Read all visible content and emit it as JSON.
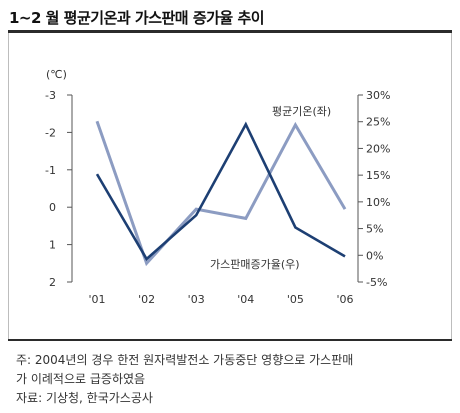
{
  "title": "1~2 월 평균기온과 가스판매 증가율 추이",
  "chart_data": {
    "type": "line",
    "x": [
      "'01",
      "'02",
      "'03",
      "'04",
      "'05",
      "'06"
    ],
    "left_axis": {
      "unit": "(℃)",
      "range": [
        -3,
        2
      ],
      "inverted": true,
      "ticks": [
        "-3",
        "-2",
        "-1",
        "0",
        "1",
        "2"
      ]
    },
    "right_axis": {
      "range": [
        -5,
        30
      ],
      "ticks": [
        "30%",
        "25%",
        "20%",
        "15%",
        "10%",
        "5%",
        "0%",
        "-5%"
      ]
    },
    "series": [
      {
        "name": "평균기온(좌)",
        "axis": "left",
        "color": "#8c9cc2",
        "values": [
          -2.3,
          1.5,
          0.05,
          0.3,
          -2.2,
          0.05
        ]
      },
      {
        "name": "가스판매증가율(우)",
        "axis": "right",
        "color": "#1d3f73",
        "values": [
          15.2,
          -0.7,
          7.5,
          24.5,
          5.2,
          -0.2
        ]
      }
    ]
  },
  "notes": {
    "line1": "주: 2004년의 경우 한전 원자력발전소 가동중단 영향으로 가스판매",
    "line2": "가 이례적으로 급증하였음",
    "line3": "자료: 기상청, 한국가스공사"
  }
}
